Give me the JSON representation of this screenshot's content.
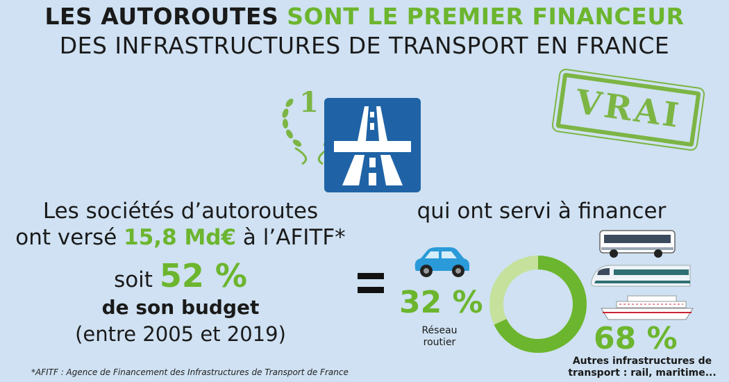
{
  "title": {
    "line1_a": "LES AUTOROUTES",
    "line1_b": "SONT LE PREMIER FINANCEUR",
    "line2": "DES INFRASTRUCTURES DE TRANSPORT EN FRANCE"
  },
  "badge": {
    "number": "1"
  },
  "stamp": {
    "text": "VRAI"
  },
  "left": {
    "line1": "Les sociétés d’autoroutes",
    "line2_a": "ont versé",
    "line2_amount": "15,8 Md€",
    "line2_b": "à l’AFITF*",
    "line3_a": "soit",
    "line3_pct": "52 %",
    "line4": "de son budget",
    "line5": "(entre 2005 et 2019)"
  },
  "equals_sign": "=",
  "right": {
    "heading": "qui ont servi à financer",
    "road_pct": "32 %",
    "road_label_1": "Réseau",
    "road_label_2": "routier",
    "other_pct": "68 %",
    "other_label_1": "Autres infrastructures de",
    "other_label_2": "transport : rail, maritime..."
  },
  "donut": {
    "road_share": 32,
    "other_share": 68
  },
  "colors": {
    "background": "#cfe1f2",
    "accent_green": "#6cb52e",
    "light_green": "#c5e19c",
    "sign_blue": "#1f63a6"
  },
  "footnote": "*AFITF : Agence de Financement des Infrastructures de Transport de France"
}
